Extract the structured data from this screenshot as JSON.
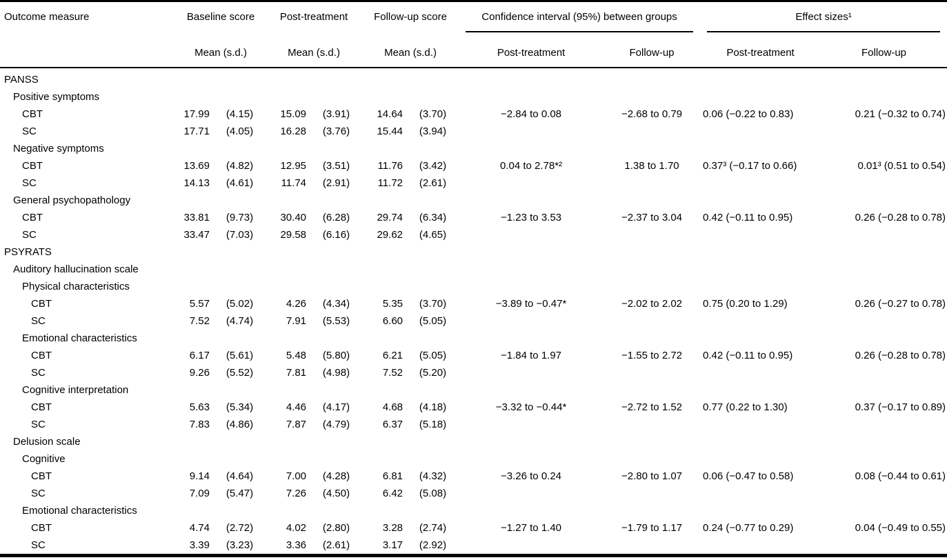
{
  "table": {
    "header": {
      "outcome": "Outcome measure",
      "baseline": "Baseline score",
      "post": "Post-treatment",
      "followup": "Follow-up score",
      "ci_group": "Confidence interval (95%) between groups",
      "effect_group": "Effect sizes¹",
      "mean_sd": "Mean (s.d.)",
      "ci_post": "Post-treatment",
      "ci_follow": "Follow-up",
      "es_post": "Post-treatment",
      "es_follow": "Follow-up"
    },
    "rows": [
      {
        "label": "PANSS",
        "indent": 0
      },
      {
        "label": "Positive symptoms",
        "indent": 1
      },
      {
        "label": "CBT",
        "indent": 2,
        "bm": "17.99",
        "bsd": "(4.15)",
        "pm": "15.09",
        "psd": "(3.91)",
        "fm": "14.64",
        "fsd": "(3.70)",
        "cip": "−2.84 to 0.08",
        "cif": "−2.68 to 0.79",
        "esp": "0.06 (−0.22 to 0.83)",
        "esf": "0.21 (−0.32 to 0.74)"
      },
      {
        "label": "SC",
        "indent": 2,
        "bm": "17.71",
        "bsd": "(4.05)",
        "pm": "16.28",
        "psd": "(3.76)",
        "fm": "15.44",
        "fsd": "(3.94)"
      },
      {
        "label": "Negative symptoms",
        "indent": 1
      },
      {
        "label": "CBT",
        "indent": 2,
        "bm": "13.69",
        "bsd": "(4.82)",
        "pm": "12.95",
        "psd": "(3.51)",
        "fm": "11.76",
        "fsd": "(3.42)",
        "cip": "0.04 to 2.78*²",
        "cif": "1.38 to 1.70",
        "esp": "0.37³ (−0.17 to 0.66)",
        "esf": "0.01³ (0.51 to 0.54)"
      },
      {
        "label": "SC",
        "indent": 2,
        "bm": "14.13",
        "bsd": "(4.61)",
        "pm": "11.74",
        "psd": "(2.91)",
        "fm": "11.72",
        "fsd": "(2.61)"
      },
      {
        "label": "General psychopathology",
        "indent": 1
      },
      {
        "label": "CBT",
        "indent": 2,
        "bm": "33.81",
        "bsd": "(9.73)",
        "pm": "30.40",
        "psd": "(6.28)",
        "fm": "29.74",
        "fsd": "(6.34)",
        "cip": "−1.23 to 3.53",
        "cif": "−2.37 to 3.04",
        "esp": "0.42 (−0.11 to 0.95)",
        "esf": "0.26 (−0.28 to 0.78)"
      },
      {
        "label": "SC",
        "indent": 2,
        "bm": "33.47",
        "bsd": "(7.03)",
        "pm": "29.58",
        "psd": "(6.16)",
        "fm": "29.62",
        "fsd": "(4.65)"
      },
      {
        "label": "PSYRATS",
        "indent": 0
      },
      {
        "label": "Auditory hallucination scale",
        "indent": 1
      },
      {
        "label": "Physical characteristics",
        "indent": 2
      },
      {
        "label": "CBT",
        "indent": 3,
        "bm": "5.57",
        "bsd": "(5.02)",
        "pm": "4.26",
        "psd": "(4.34)",
        "fm": "5.35",
        "fsd": "(3.70)",
        "cip": "−3.89 to −0.47*",
        "cif": "−2.02 to 2.02",
        "esp": "0.75 (0.20 to 1.29)",
        "esf": "0.26 (−0.27 to 0.78)"
      },
      {
        "label": "SC",
        "indent": 3,
        "bm": "7.52",
        "bsd": "(4.74)",
        "pm": "7.91",
        "psd": "(5.53)",
        "fm": "6.60",
        "fsd": "(5.05)"
      },
      {
        "label": "Emotional characteristics",
        "indent": 2
      },
      {
        "label": "CBT",
        "indent": 3,
        "bm": "6.17",
        "bsd": "(5.61)",
        "pm": "5.48",
        "psd": "(5.80)",
        "fm": "6.21",
        "fsd": "(5.05)",
        "cip": "−1.84 to 1.97",
        "cif": "−1.55 to 2.72",
        "esp": "0.42 (−0.11 to 0.95)",
        "esf": "0.26 (−0.28 to 0.78)"
      },
      {
        "label": "SC",
        "indent": 3,
        "bm": "9.26",
        "bsd": "(5.52)",
        "pm": "7.81",
        "psd": "(4.98)",
        "fm": "7.52",
        "fsd": "(5.20)"
      },
      {
        "label": "Cognitive interpretation",
        "indent": 2
      },
      {
        "label": "CBT",
        "indent": 3,
        "bm": "5.63",
        "bsd": "(5.34)",
        "pm": "4.46",
        "psd": "(4.17)",
        "fm": "4.68",
        "fsd": "(4.18)",
        "cip": "−3.32 to −0.44*",
        "cif": "−2.72 to 1.52",
        "esp": "0.77 (0.22 to 1.30)",
        "esf": "0.37 (−0.17 to 0.89)"
      },
      {
        "label": "SC",
        "indent": 3,
        "bm": "7.83",
        "bsd": "(4.86)",
        "pm": "7.87",
        "psd": "(4.79)",
        "fm": "6.37",
        "fsd": "(5.18)"
      },
      {
        "label": "Delusion scale",
        "indent": 1
      },
      {
        "label": "Cognitive",
        "indent": 2
      },
      {
        "label": "CBT",
        "indent": 3,
        "bm": "9.14",
        "bsd": "(4.64)",
        "pm": "7.00",
        "psd": "(4.28)",
        "fm": "6.81",
        "fsd": "(4.32)",
        "cip": "−3.26 to 0.24",
        "cif": "−2.80 to 1.07",
        "esp": "0.06 (−0.47 to 0.58)",
        "esf": "0.08 (−0.44 to 0.61)"
      },
      {
        "label": "SC",
        "indent": 3,
        "bm": "7.09",
        "bsd": "(5.47)",
        "pm": "7.26",
        "psd": "(4.50)",
        "fm": "6.42",
        "fsd": "(5.08)"
      },
      {
        "label": "Emotional characteristics",
        "indent": 2
      },
      {
        "label": "CBT",
        "indent": 3,
        "bm": "4.74",
        "bsd": "(2.72)",
        "pm": "4.02",
        "psd": "(2.80)",
        "fm": "3.28",
        "fsd": "(2.74)",
        "cip": "−1.27 to 1.40",
        "cif": "−1.79 to 1.17",
        "esp": "0.24 (−0.77 to 0.29)",
        "esf": "0.04 (−0.49 to 0.55)"
      },
      {
        "label": "SC",
        "indent": 3,
        "bm": "3.39",
        "bsd": "(3.23)",
        "pm": "3.36",
        "psd": "(2.61)",
        "fm": "3.17",
        "fsd": "(2.92)"
      }
    ]
  }
}
